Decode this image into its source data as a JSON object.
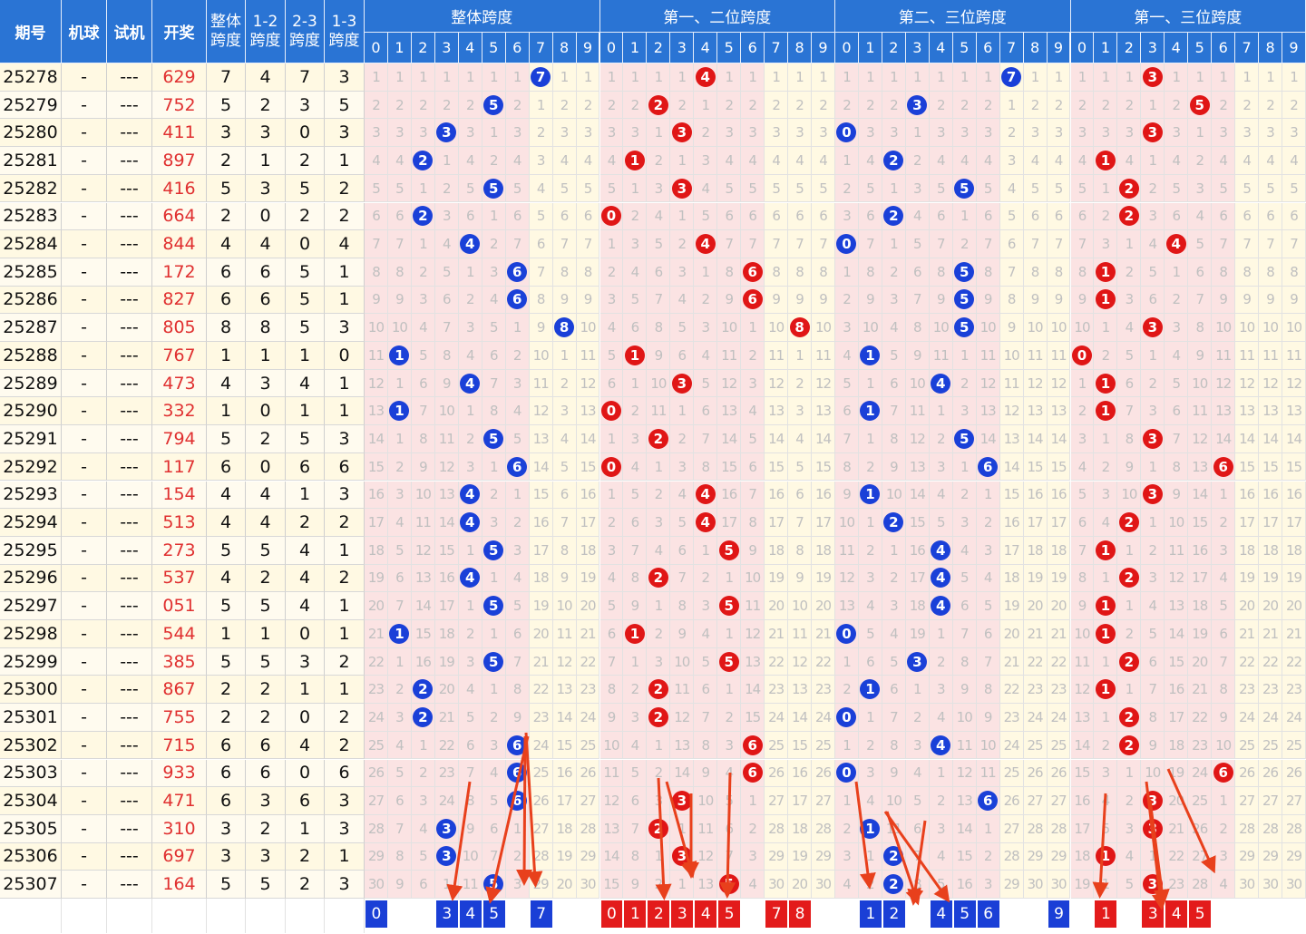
{
  "chart_data": {
    "type": "table",
    "headers": {
      "period": "期号",
      "machine_ball": "机球",
      "trial": "试机",
      "draw": "开奖",
      "total_span": [
        "整体",
        "跨度"
      ],
      "span_12": [
        "1-2",
        "跨度"
      ],
      "span_23": [
        "2-3",
        "跨度"
      ],
      "span_13": [
        "1-3",
        "跨度"
      ]
    },
    "sections": [
      {
        "title": "整体跨度",
        "color": "#1a40d8"
      },
      {
        "title": "第一、二位跨度",
        "color": "#e01616"
      },
      {
        "title": "第二、三位跨度",
        "color": "#1a40d8"
      },
      {
        "title": "第一、三位跨度",
        "color": "#e01616"
      }
    ],
    "digits": [
      "0",
      "1",
      "2",
      "3",
      "4",
      "5",
      "6",
      "7",
      "8",
      "9"
    ],
    "rows": [
      {
        "period": "25278",
        "machine": "-",
        "trial": "---",
        "draw": "629",
        "spans": [
          7,
          4,
          7,
          3
        ]
      },
      {
        "period": "25279",
        "machine": "-",
        "trial": "---",
        "draw": "752",
        "spans": [
          5,
          2,
          3,
          5
        ]
      },
      {
        "period": "25280",
        "machine": "-",
        "trial": "---",
        "draw": "411",
        "spans": [
          3,
          3,
          0,
          3
        ]
      },
      {
        "period": "25281",
        "machine": "-",
        "trial": "---",
        "draw": "897",
        "spans": [
          2,
          1,
          2,
          1
        ]
      },
      {
        "period": "25282",
        "machine": "-",
        "trial": "---",
        "draw": "416",
        "spans": [
          5,
          3,
          5,
          2
        ]
      },
      {
        "period": "25283",
        "machine": "-",
        "trial": "---",
        "draw": "664",
        "spans": [
          2,
          0,
          2,
          2
        ]
      },
      {
        "period": "25284",
        "machine": "-",
        "trial": "---",
        "draw": "844",
        "spans": [
          4,
          4,
          0,
          4
        ]
      },
      {
        "period": "25285",
        "machine": "-",
        "trial": "---",
        "draw": "172",
        "spans": [
          6,
          6,
          5,
          1
        ]
      },
      {
        "period": "25286",
        "machine": "-",
        "trial": "---",
        "draw": "827",
        "spans": [
          6,
          6,
          5,
          1
        ]
      },
      {
        "period": "25287",
        "machine": "-",
        "trial": "---",
        "draw": "805",
        "spans": [
          8,
          8,
          5,
          3
        ]
      },
      {
        "period": "25288",
        "machine": "-",
        "trial": "---",
        "draw": "767",
        "spans": [
          1,
          1,
          1,
          0
        ]
      },
      {
        "period": "25289",
        "machine": "-",
        "trial": "---",
        "draw": "473",
        "spans": [
          4,
          3,
          4,
          1
        ]
      },
      {
        "period": "25290",
        "machine": "-",
        "trial": "---",
        "draw": "332",
        "spans": [
          1,
          0,
          1,
          1
        ]
      },
      {
        "period": "25291",
        "machine": "-",
        "trial": "---",
        "draw": "794",
        "spans": [
          5,
          2,
          5,
          3
        ]
      },
      {
        "period": "25292",
        "machine": "-",
        "trial": "---",
        "draw": "117",
        "spans": [
          6,
          0,
          6,
          6
        ]
      },
      {
        "period": "25293",
        "machine": "-",
        "trial": "---",
        "draw": "154",
        "spans": [
          4,
          4,
          1,
          3
        ]
      },
      {
        "period": "25294",
        "machine": "-",
        "trial": "---",
        "draw": "513",
        "spans": [
          4,
          4,
          2,
          2
        ]
      },
      {
        "period": "25295",
        "machine": "-",
        "trial": "---",
        "draw": "273",
        "spans": [
          5,
          5,
          4,
          1
        ]
      },
      {
        "period": "25296",
        "machine": "-",
        "trial": "---",
        "draw": "537",
        "spans": [
          4,
          2,
          4,
          2
        ]
      },
      {
        "period": "25297",
        "machine": "-",
        "trial": "---",
        "draw": "051",
        "spans": [
          5,
          5,
          4,
          1
        ]
      },
      {
        "period": "25298",
        "machine": "-",
        "trial": "---",
        "draw": "544",
        "spans": [
          1,
          1,
          0,
          1
        ]
      },
      {
        "period": "25299",
        "machine": "-",
        "trial": "---",
        "draw": "385",
        "spans": [
          5,
          5,
          3,
          2
        ]
      },
      {
        "period": "25300",
        "machine": "-",
        "trial": "---",
        "draw": "867",
        "spans": [
          2,
          2,
          1,
          1
        ]
      },
      {
        "period": "25301",
        "machine": "-",
        "trial": "---",
        "draw": "755",
        "spans": [
          2,
          2,
          0,
          2
        ]
      },
      {
        "period": "25302",
        "machine": "-",
        "trial": "---",
        "draw": "715",
        "spans": [
          6,
          6,
          4,
          2
        ]
      },
      {
        "period": "25303",
        "machine": "-",
        "trial": "---",
        "draw": "933",
        "spans": [
          6,
          6,
          0,
          6
        ]
      },
      {
        "period": "25304",
        "machine": "-",
        "trial": "---",
        "draw": "471",
        "spans": [
          6,
          3,
          6,
          3
        ]
      },
      {
        "period": "25305",
        "machine": "-",
        "trial": "---",
        "draw": "310",
        "spans": [
          3,
          2,
          1,
          3
        ]
      },
      {
        "period": "25306",
        "machine": "-",
        "trial": "---",
        "draw": "697",
        "spans": [
          3,
          3,
          2,
          1
        ]
      },
      {
        "period": "25307",
        "machine": "-",
        "trial": "---",
        "draw": "164",
        "spans": [
          5,
          5,
          2,
          3
        ]
      }
    ],
    "forecast": [
      [
        0,
        3,
        4,
        5,
        7
      ],
      [
        0,
        1,
        2,
        3,
        4,
        5,
        7,
        8
      ],
      [
        1,
        2,
        4,
        5,
        6,
        9
      ],
      [
        1,
        3,
        4,
        5
      ]
    ],
    "colors": {
      "header": "#2a74d4",
      "blue_ball": "#1a40d8",
      "red_ball": "#e01616",
      "draw_text": "#e03030",
      "arrow": "#e8401c",
      "grid_pink": "#fbe3e3",
      "grid_cream": "#fff9e3"
    }
  }
}
